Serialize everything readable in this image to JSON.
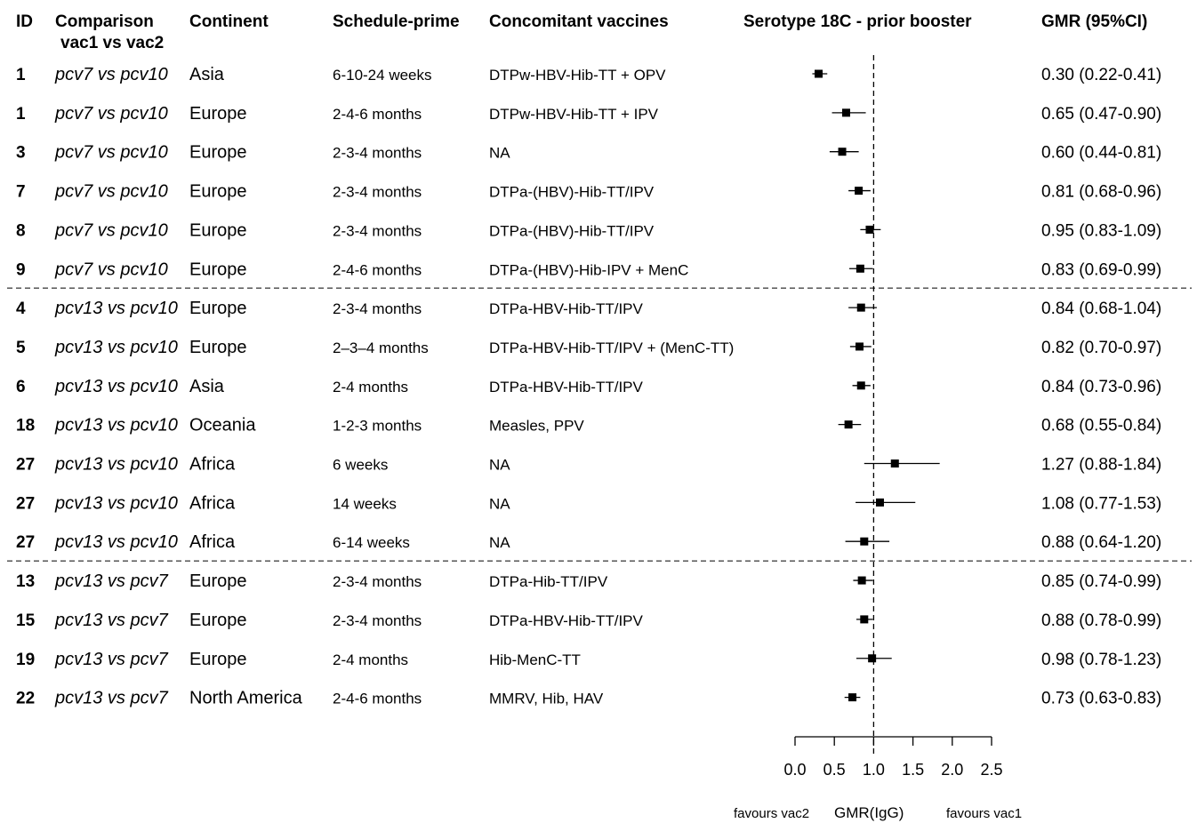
{
  "headers": {
    "id": "ID",
    "comparison_line1": "Comparison",
    "comparison_line2": "vac1 vs vac2",
    "continent": "Continent",
    "schedule": "Schedule-prime",
    "vaccines": "Concomitant vaccines",
    "plot_title": "Serotype 18C - prior booster",
    "gmr": "GMR (95%CI)"
  },
  "chart_data": {
    "type": "forest",
    "title": "Serotype 18C - prior booster",
    "xlabel": "GMR(IgG)",
    "favours_left": "favours vac2",
    "favours_right": "favours vac1",
    "xlim": [
      0.0,
      2.5
    ],
    "x_ticks": [
      0.0,
      0.5,
      1.0,
      1.5,
      2.0,
      2.5
    ],
    "x_tick_labels": [
      "0.0",
      "0.5",
      "1.0",
      "1.5",
      "2.0",
      "2.5"
    ],
    "reference_line": 1.0,
    "groups": [
      {
        "comparison": "pcv7 vs pcv10",
        "rows": 6
      },
      {
        "comparison": "pcv13 vs pcv10",
        "rows": 7
      },
      {
        "comparison": "pcv13 vs pcv7",
        "rows": 4
      }
    ],
    "rows": [
      {
        "id": "1",
        "comparison": "pcv7 vs pcv10",
        "continent": "Asia",
        "schedule": "6-10-24 weeks",
        "vaccines": "DTPw-HBV-Hib-TT + OPV",
        "gmr": 0.3,
        "lo": 0.22,
        "hi": 0.41,
        "gmr_text": "0.30 (0.22-0.41)"
      },
      {
        "id": "1",
        "comparison": "pcv7 vs pcv10",
        "continent": "Europe",
        "schedule": "2-4-6 months",
        "vaccines": "DTPw-HBV-Hib-TT + IPV",
        "gmr": 0.65,
        "lo": 0.47,
        "hi": 0.9,
        "gmr_text": "0.65 (0.47-0.90)"
      },
      {
        "id": "3",
        "comparison": "pcv7 vs pcv10",
        "continent": "Europe",
        "schedule": "2-3-4 months",
        "vaccines": "NA",
        "gmr": 0.6,
        "lo": 0.44,
        "hi": 0.81,
        "gmr_text": "0.60 (0.44-0.81)"
      },
      {
        "id": "7",
        "comparison": "pcv7 vs pcv10",
        "continent": "Europe",
        "schedule": "2-3-4 months",
        "vaccines": "DTPa-(HBV)-Hib-TT/IPV",
        "gmr": 0.81,
        "lo": 0.68,
        "hi": 0.96,
        "gmr_text": "0.81 (0.68-0.96)"
      },
      {
        "id": "8",
        "comparison": "pcv7 vs pcv10",
        "continent": "Europe",
        "schedule": "2-3-4 months",
        "vaccines": "DTPa-(HBV)-Hib-TT/IPV",
        "gmr": 0.95,
        "lo": 0.83,
        "hi": 1.09,
        "gmr_text": "0.95 (0.83-1.09)"
      },
      {
        "id": "9",
        "comparison": "pcv7 vs pcv10",
        "continent": "Europe",
        "schedule": "2-4-6 months",
        "vaccines": "DTPa-(HBV)-Hib-IPV + MenC",
        "gmr": 0.83,
        "lo": 0.69,
        "hi": 0.99,
        "gmr_text": "0.83 (0.69-0.99)"
      },
      {
        "id": "4",
        "comparison": "pcv13 vs pcv10",
        "continent": "Europe",
        "schedule": "2-3-4 months",
        "vaccines": "DTPa-HBV-Hib-TT/IPV",
        "gmr": 0.84,
        "lo": 0.68,
        "hi": 1.04,
        "gmr_text": "0.84 (0.68-1.04)"
      },
      {
        "id": "5",
        "comparison": "pcv13 vs pcv10",
        "continent": "Europe",
        "schedule": "2–3–4 months",
        "vaccines": "DTPa-HBV-Hib-TT/IPV + (MenC-TT)",
        "gmr": 0.82,
        "lo": 0.7,
        "hi": 0.97,
        "gmr_text": "0.82 (0.70-0.97)"
      },
      {
        "id": "6",
        "comparison": "pcv13 vs pcv10",
        "continent": "Asia",
        "schedule": "2-4 months",
        "vaccines": "DTPa-HBV-Hib-TT/IPV",
        "gmr": 0.84,
        "lo": 0.73,
        "hi": 0.96,
        "gmr_text": "0.84 (0.73-0.96)"
      },
      {
        "id": "18",
        "comparison": "pcv13 vs pcv10",
        "continent": "Oceania",
        "schedule": "1-2-3 months",
        "vaccines": "Measles, PPV",
        "gmr": 0.68,
        "lo": 0.55,
        "hi": 0.84,
        "gmr_text": "0.68 (0.55-0.84)"
      },
      {
        "id": "27",
        "comparison": "pcv13 vs pcv10",
        "continent": "Africa",
        "schedule": "6 weeks",
        "vaccines": "NA",
        "gmr": 1.27,
        "lo": 0.88,
        "hi": 1.84,
        "gmr_text": "1.27 (0.88-1.84)"
      },
      {
        "id": "27",
        "comparison": "pcv13 vs pcv10",
        "continent": "Africa",
        "schedule": "14 weeks",
        "vaccines": "NA",
        "gmr": 1.08,
        "lo": 0.77,
        "hi": 1.53,
        "gmr_text": "1.08 (0.77-1.53)"
      },
      {
        "id": "27",
        "comparison": "pcv13 vs pcv10",
        "continent": "Africa",
        "schedule": "6-14 weeks",
        "vaccines": "NA",
        "gmr": 0.88,
        "lo": 0.64,
        "hi": 1.2,
        "gmr_text": "0.88 (0.64-1.20)"
      },
      {
        "id": "13",
        "comparison": "pcv13 vs pcv7",
        "continent": "Europe",
        "schedule": "2-3-4 months",
        "vaccines": "DTPa-Hib-TT/IPV",
        "gmr": 0.85,
        "lo": 0.74,
        "hi": 0.99,
        "gmr_text": "0.85 (0.74-0.99)"
      },
      {
        "id": "15",
        "comparison": "pcv13 vs pcv7",
        "continent": "Europe",
        "schedule": "2-3-4 months",
        "vaccines": "DTPa-HBV-Hib-TT/IPV",
        "gmr": 0.88,
        "lo": 0.78,
        "hi": 0.99,
        "gmr_text": "0.88 (0.78-0.99)"
      },
      {
        "id": "19",
        "comparison": "pcv13 vs pcv7",
        "continent": "Europe",
        "schedule": "2-4 months",
        "vaccines": "Hib-MenC-TT",
        "gmr": 0.98,
        "lo": 0.78,
        "hi": 1.23,
        "gmr_text": "0.98 (0.78-1.23)"
      },
      {
        "id": "22",
        "comparison": "pcv13 vs pcv7",
        "continent": "North America",
        "schedule": "2-4-6 months",
        "vaccines": "MMRV, Hib, HAV",
        "gmr": 0.73,
        "lo": 0.63,
        "hi": 0.83,
        "gmr_text": "0.73 (0.63-0.83)"
      }
    ]
  }
}
